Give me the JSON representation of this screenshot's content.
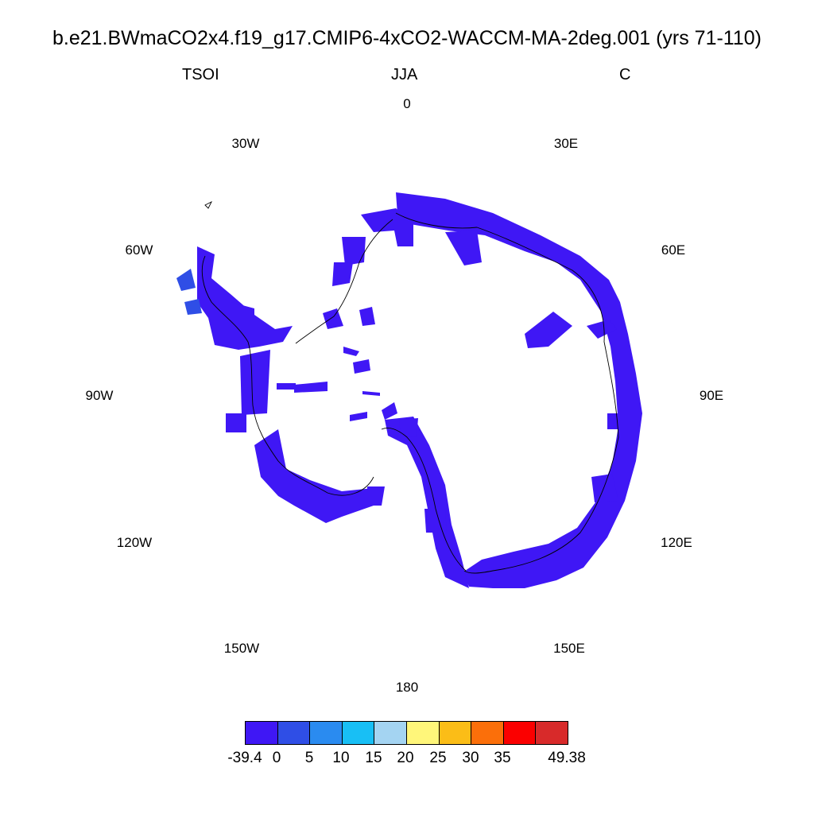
{
  "header": {
    "title": "b.e21.BWmaCO2x4.f19_g17.CMIP6-4xCO2-WACCM-MA-2deg.001 (yrs 71-110)",
    "left": "TSOI",
    "center": "JJA",
    "right": "C"
  },
  "map": {
    "projection": "south-polar-stereographic",
    "region": "Antarctica",
    "lon_labels": [
      "0",
      "30E",
      "60E",
      "90E",
      "120E",
      "150E",
      "180",
      "150W",
      "120W",
      "90W",
      "60W",
      "30W"
    ]
  },
  "colorbar": {
    "colors": [
      "#3f17f5",
      "#2f4ee6",
      "#2a8bf0",
      "#18bff5",
      "#a4d4f2",
      "#fff67a",
      "#fbbd17",
      "#fb6f0a",
      "#fb0000",
      "#d82a2a"
    ],
    "labels": [
      "-39.4",
      "0",
      "5",
      "10",
      "15",
      "20",
      "25",
      "30",
      "35",
      "49.38"
    ]
  }
}
